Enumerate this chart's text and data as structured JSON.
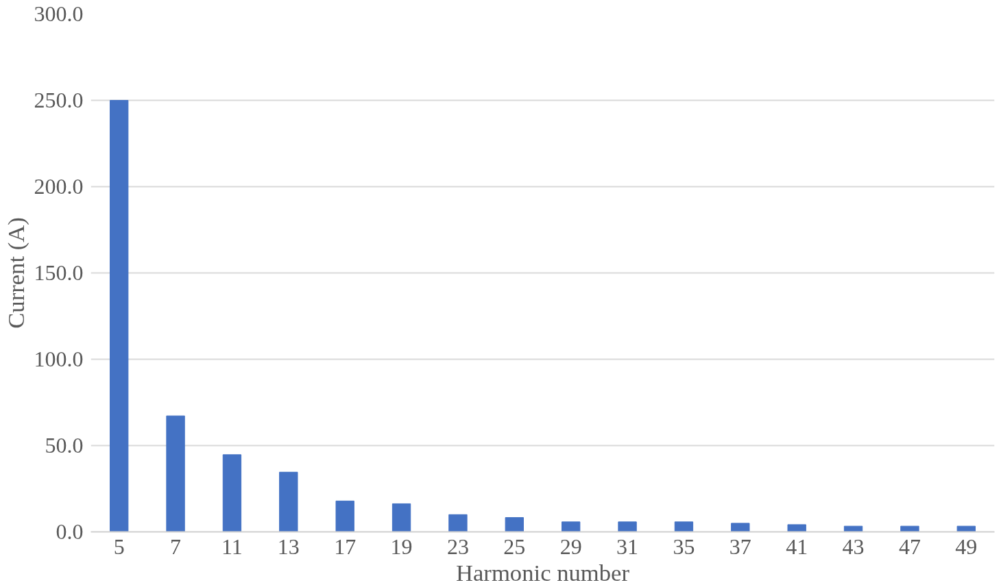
{
  "chart_data": {
    "type": "bar",
    "xlabel": "Harmonic number",
    "ylabel": "Current (A)",
    "categories": [
      "5",
      "7",
      "11",
      "13",
      "17",
      "19",
      "23",
      "25",
      "29",
      "31",
      "35",
      "37",
      "41",
      "43",
      "47",
      "49"
    ],
    "values": [
      250,
      67.2,
      44.7,
      34.6,
      17.9,
      16.3,
      10.0,
      8.3,
      5.8,
      5.8,
      5.8,
      5.0,
      4.2,
      3.3,
      3.3,
      3.3
    ],
    "color": "#4472c4",
    "ylim": [
      0,
      300
    ],
    "yticks": [
      {
        "value": 0,
        "label": "0.0"
      },
      {
        "value": 50,
        "label": "50.0"
      },
      {
        "value": 100,
        "label": "100.0"
      },
      {
        "value": 150,
        "label": "150.0"
      },
      {
        "value": 200,
        "label": "200.0"
      },
      {
        "value": 250,
        "label": "250.0"
      },
      {
        "value": 300,
        "label": "300.0"
      }
    ],
    "grid": "y"
  }
}
